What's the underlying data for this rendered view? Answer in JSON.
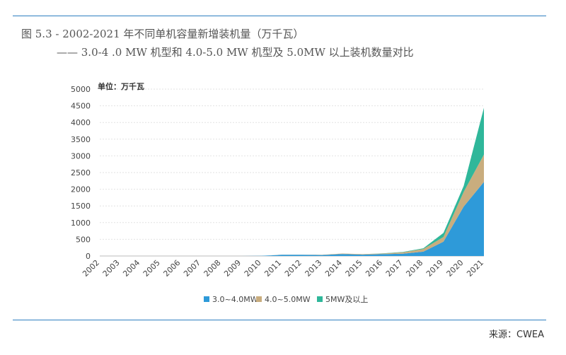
{
  "header": {
    "title_line1": "图 5.3 - 2002-2021 年不同单机容量新增装机量（万千瓦）",
    "title_line2": "—— 3.0-4 .0 MW 机型和 4.0-5.0 MW 机型及 5.0MW 以上装机数量对比"
  },
  "footer": {
    "source": "来源：CWEA"
  },
  "colors": {
    "rule": "#2e7fc0",
    "series1": "#2e9ad9",
    "series2": "#c9ad7e",
    "series3": "#2fb79a"
  },
  "chart_data": {
    "type": "area",
    "stacked": true,
    "unit_label": "单位：万千瓦",
    "x": [
      "2002",
      "2003",
      "2004",
      "2005",
      "2006",
      "2007",
      "2008",
      "2009",
      "2010",
      "2011",
      "2012",
      "2013",
      "2014",
      "2015",
      "2016",
      "2017",
      "2018",
      "2019",
      "2020",
      "2021"
    ],
    "ylim": [
      0,
      5000
    ],
    "yticks": [
      "0",
      "500",
      "1000",
      "1500",
      "2000",
      "2500",
      "3000",
      "3500",
      "4000",
      "4500",
      "5000"
    ],
    "grid": true,
    "legend_position": "bottom",
    "series": [
      {
        "name": "3.0~4.0MW",
        "values": [
          0,
          0,
          0,
          0,
          0,
          0,
          0,
          0,
          5,
          35,
          35,
          30,
          60,
          40,
          55,
          70,
          130,
          430,
          1480,
          2220
        ]
      },
      {
        "name": "4.0~5.0MW",
        "values": [
          0,
          0,
          0,
          0,
          0,
          0,
          0,
          0,
          0,
          5,
          5,
          5,
          15,
          15,
          20,
          40,
          80,
          140,
          440,
          820
        ]
      },
      {
        "name": "5MW及以上",
        "values": [
          0,
          0,
          0,
          0,
          0,
          0,
          0,
          0,
          0,
          0,
          0,
          0,
          0,
          0,
          5,
          10,
          20,
          120,
          180,
          1400
        ]
      }
    ]
  }
}
